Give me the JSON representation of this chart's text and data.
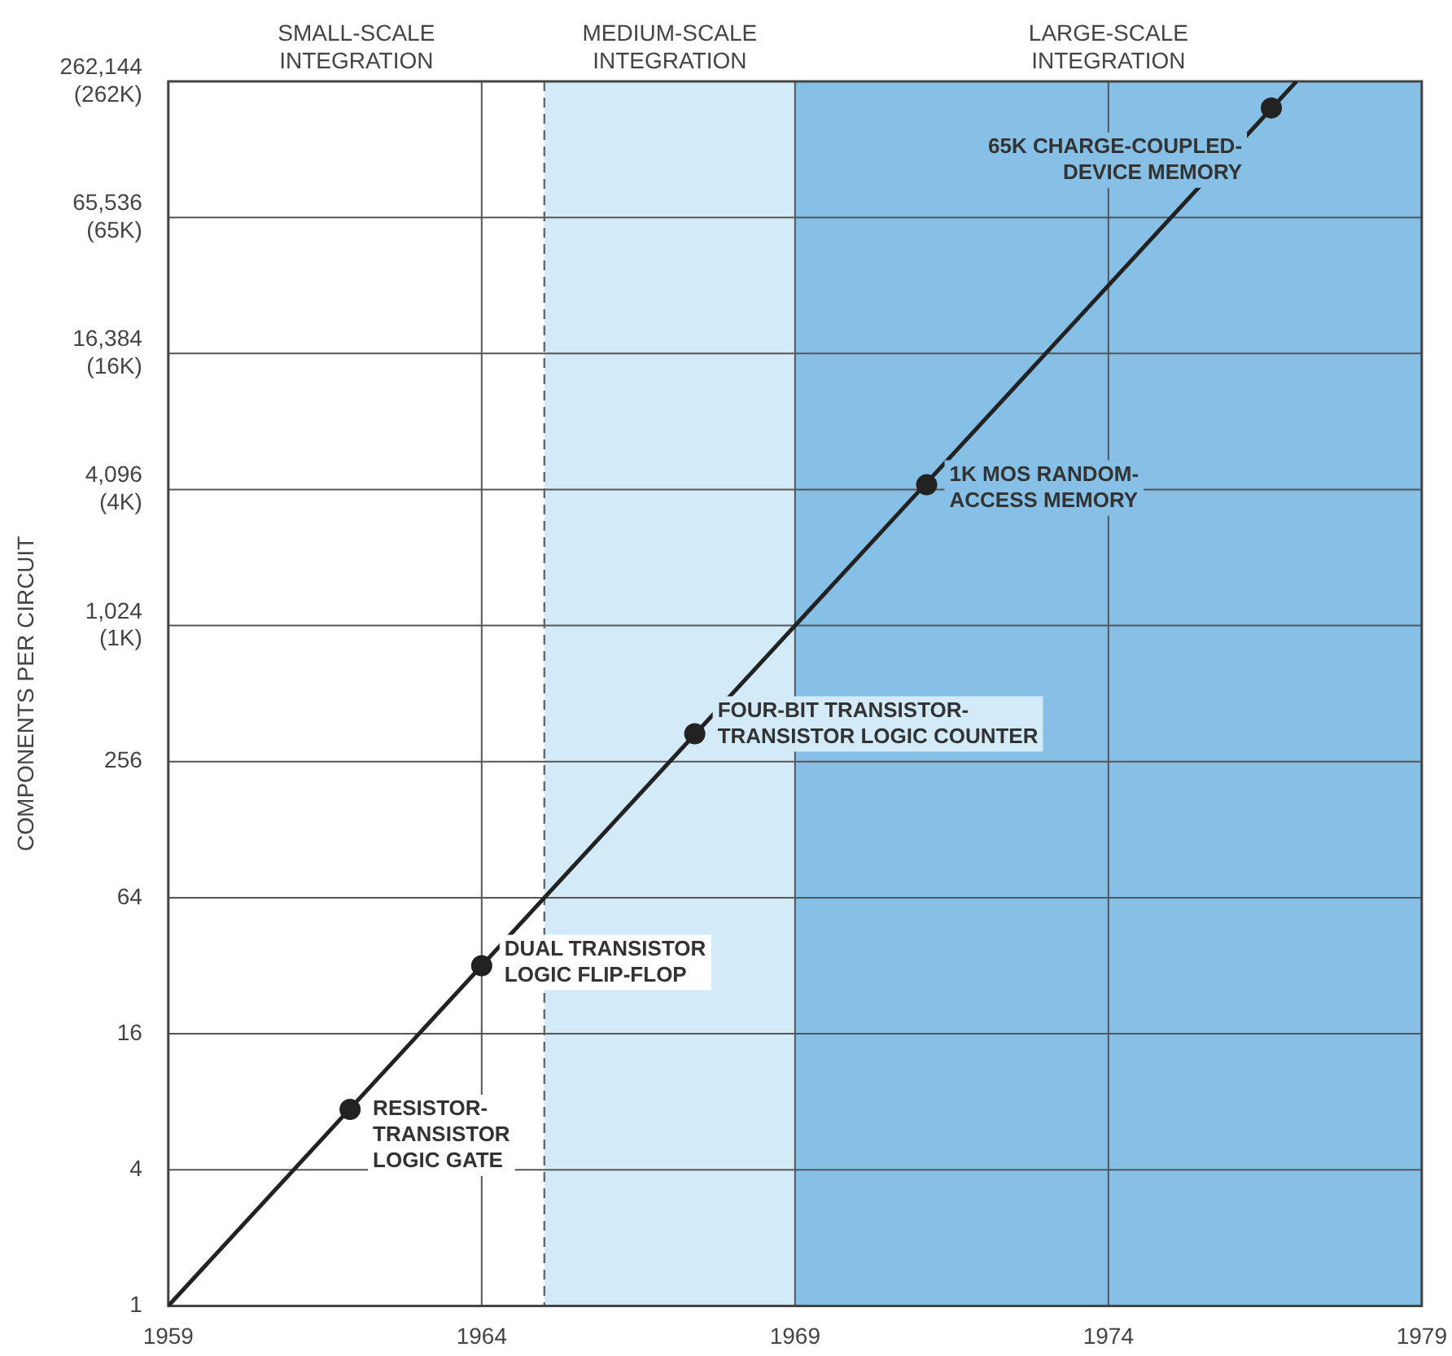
{
  "chart_data": {
    "type": "line",
    "ylabel": "COMPONENTS PER CIRCUIT",
    "log": "y",
    "xlim": [
      1959,
      1979
    ],
    "xticks": [
      1959,
      1964,
      1969,
      1974,
      1979
    ],
    "ylim": [
      1,
      262144
    ],
    "yticks": [
      1,
      4,
      16,
      64,
      256,
      {
        "value": 1024,
        "label": "1,024\n(1K)"
      },
      {
        "value": 4096,
        "label": "4,096\n(4K)"
      },
      {
        "value": 16384,
        "label": "16,384\n(16K)"
      },
      {
        "value": 65536,
        "label": "65,536\n(65K)"
      },
      {
        "value": 262144,
        "label": "262,144\n(262K)"
      }
    ],
    "grid": true,
    "series": [
      {
        "type": "line",
        "color": "#222222",
        "marker": "none",
        "x": [
          1959,
          1977
        ],
        "values": [
          1,
          262144
        ]
      },
      {
        "type": "scatter",
        "color": "#222222",
        "marker": "circle",
        "x": [
          1961.9,
          1964,
          1967.4,
          1971.1,
          1976.6
        ],
        "values": [
          7.4,
          32,
          340,
          4300,
          200000
        ]
      }
    ],
    "bands": [
      {
        "axis": "x",
        "from": 1965,
        "to": 1969,
        "label": "MEDIUM-SCALE\nINTEGRATION",
        "color": "#d3ebf8"
      },
      {
        "axis": "x",
        "from": 1969,
        "to": 1979,
        "label": "LARGE-SCALE\nINTEGRATION",
        "color": "#86c0e6"
      }
    ],
    "ref_lines": [
      {
        "axis": "x",
        "value": 1965,
        "color": "#666666",
        "line_style": "dashed"
      }
    ],
    "annotations": [
      "SMALL-SCALE\nINTEGRATION",
      {
        "text": "RESISTOR-\nTRANSISTOR\nLOGIC GATE",
        "x": 1961.9,
        "y": 7.4
      },
      {
        "text": "DUAL TRANSISTOR\nLOGIC FLIP-FLOP",
        "x": 1964,
        "y": 32
      },
      {
        "text": "FOUR-BIT TRANSISTOR-\nTRANSISTOR LOGIC COUNTER",
        "x": 1967.4,
        "y": 340
      },
      {
        "text": "1K MOS RANDOM-\nACCESS MEMORY",
        "x": 1971.1,
        "y": 4300
      },
      {
        "text": "65K CHARGE-COUPLED-\nDEVICE MEMORY",
        "x": 1976.6,
        "y": 200000
      }
    ]
  }
}
